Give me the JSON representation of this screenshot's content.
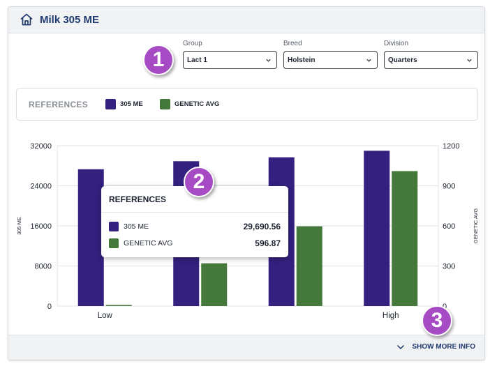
{
  "header": {
    "title": "Milk 305 ME",
    "icon": "home-icon"
  },
  "filters": [
    {
      "label": "Group",
      "value": "Lact 1"
    },
    {
      "label": "Breed",
      "value": "Holstein"
    },
    {
      "label": "Division",
      "value": "Quarters"
    }
  ],
  "badges": [
    "1",
    "2",
    "3"
  ],
  "references": {
    "title": "REFERENCES",
    "items": [
      {
        "label": "305 ME",
        "color": "#33207f"
      },
      {
        "label": "GENETIC AVG",
        "color": "#44793b"
      }
    ]
  },
  "chart_data": {
    "type": "bar",
    "categories": [
      "Low",
      "",
      "",
      "High"
    ],
    "series": [
      {
        "name": "305 ME",
        "axis": "left",
        "color": "#33207f",
        "values": [
          27300,
          28900,
          29690.56,
          31000
        ]
      },
      {
        "name": "GENETIC AVG",
        "axis": "right",
        "color": "#44793b",
        "values": [
          8,
          320,
          596.87,
          1010
        ]
      }
    ],
    "ylabel": "305 ME",
    "ylim": [
      0,
      32000
    ],
    "yticks": [
      "32000",
      "24000",
      "16000",
      "8000",
      "0"
    ],
    "y2label": "GENETIC AVG",
    "y2lim": [
      0,
      1200
    ],
    "y2ticks": [
      "1200",
      "900",
      "600",
      "300",
      "0"
    ],
    "grid": true
  },
  "tooltip": {
    "title": "REFERENCES",
    "rows": [
      {
        "label": "305 ME",
        "value": "29,690.56",
        "color": "#33207f"
      },
      {
        "label": "GENETIC AVG",
        "value": "596.87",
        "color": "#44793b"
      }
    ]
  },
  "footer": {
    "more_info": "SHOW MORE INFO"
  }
}
